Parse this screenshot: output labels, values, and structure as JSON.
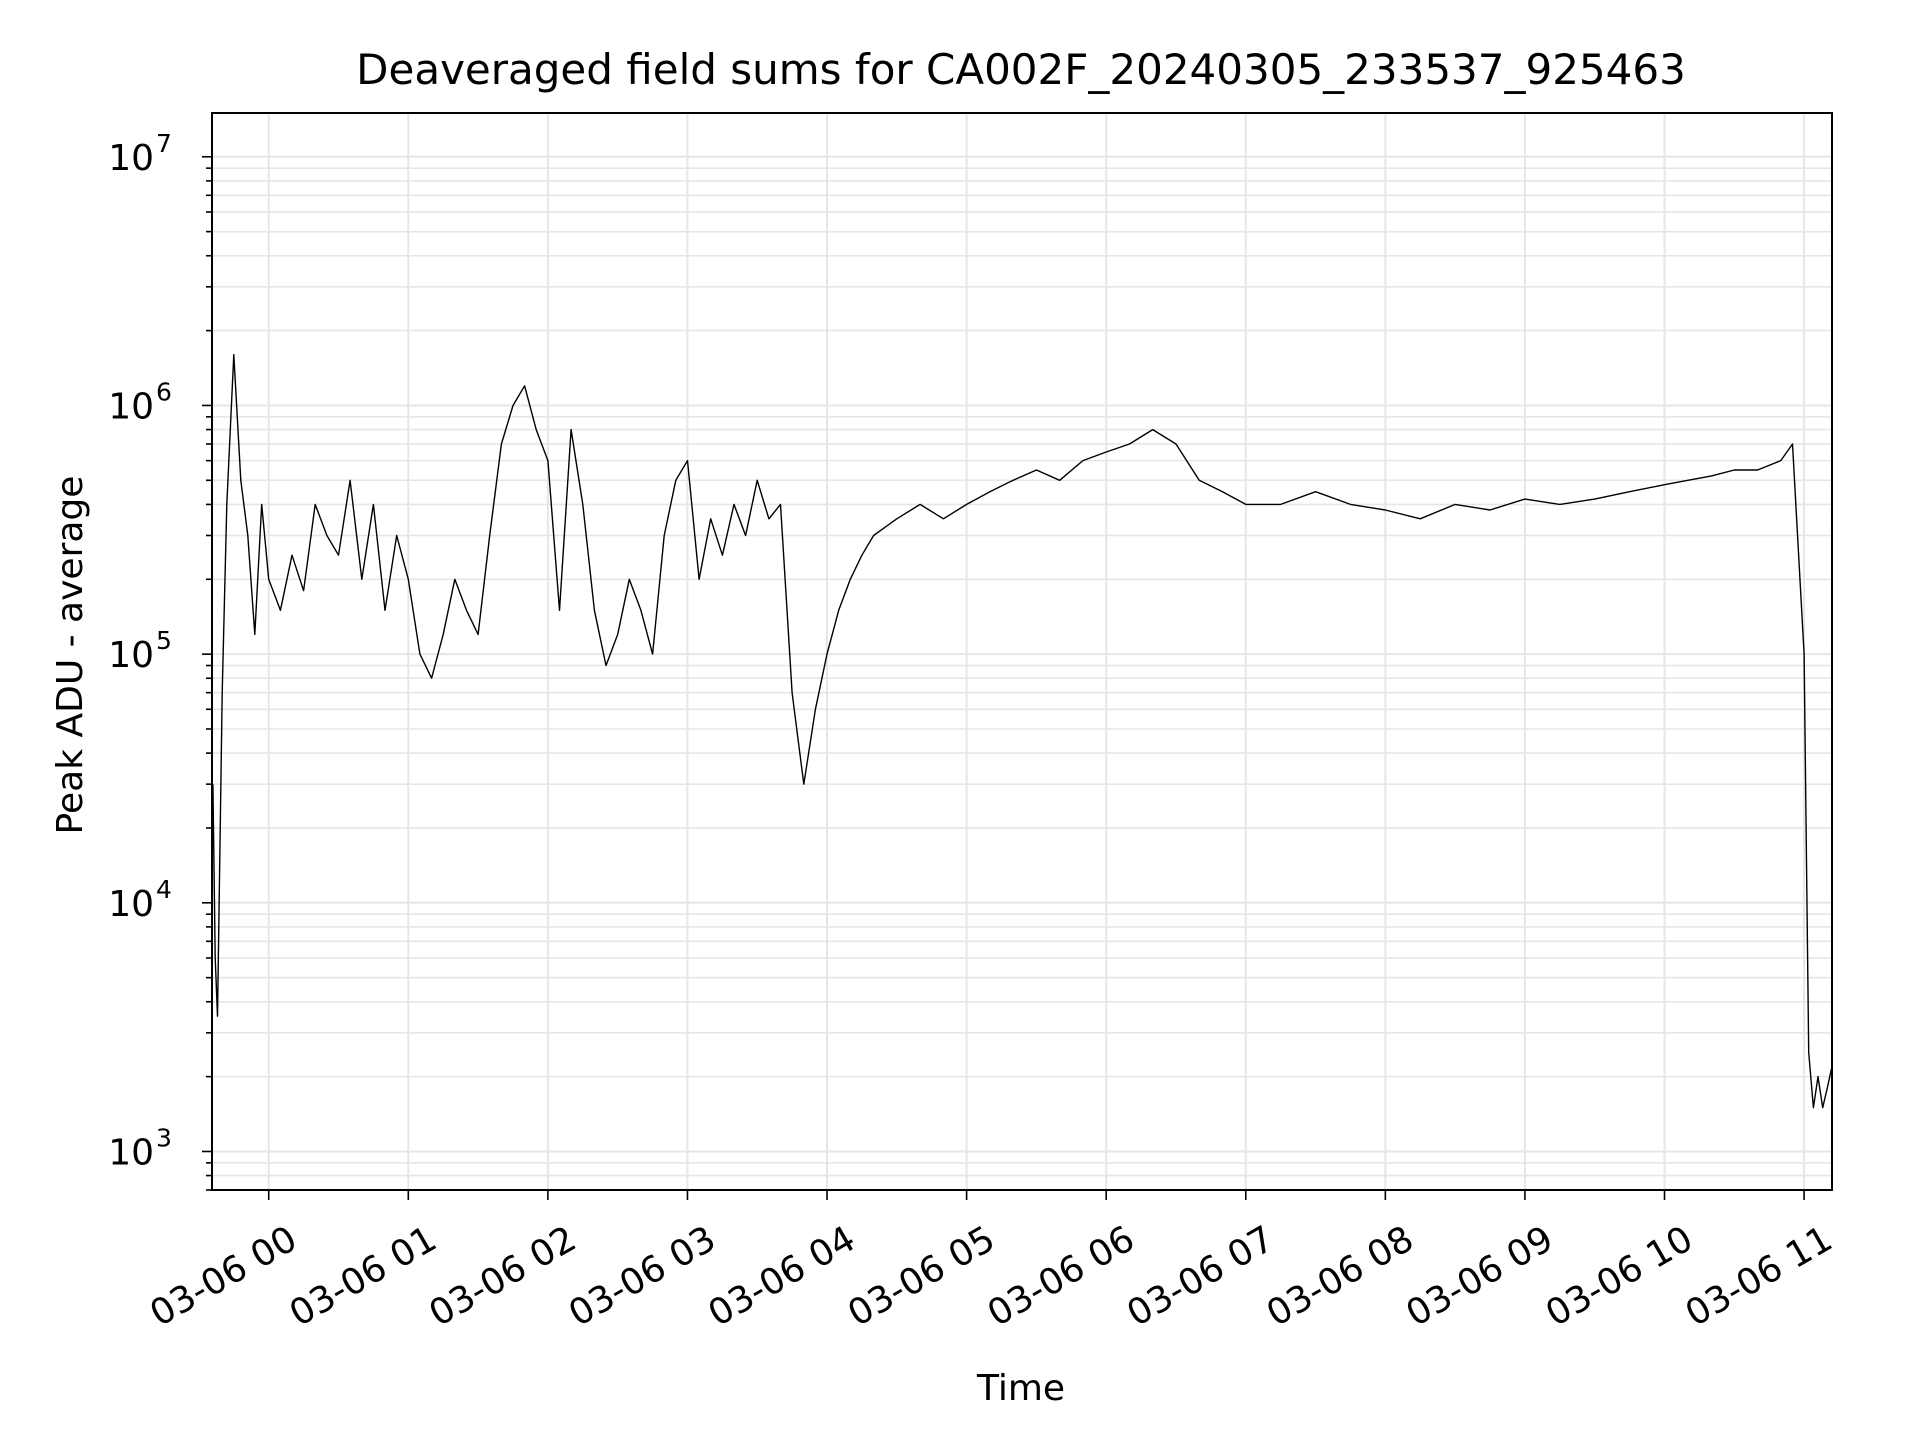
{
  "chart_data": {
    "type": "line",
    "title": "Deaveraged field sums for CA002F_20240305_233537_925463",
    "xlabel": "Time",
    "ylabel": "Peak ADU - average",
    "yscale": "log",
    "ylim": [
      700,
      15000000
    ],
    "xlim": [
      "2024-03-05 23:35:37",
      "2024-03-06 11:12:00"
    ],
    "grid": true,
    "line_color": "#000000",
    "grid_color": "#e6e6e6",
    "x_ticks": [
      {
        "t": "2024-03-06 00:00",
        "label": "03-06 00"
      },
      {
        "t": "2024-03-06 01:00",
        "label": "03-06 01"
      },
      {
        "t": "2024-03-06 02:00",
        "label": "03-06 02"
      },
      {
        "t": "2024-03-06 03:00",
        "label": "03-06 03"
      },
      {
        "t": "2024-03-06 04:00",
        "label": "03-06 04"
      },
      {
        "t": "2024-03-06 05:00",
        "label": "03-06 05"
      },
      {
        "t": "2024-03-06 06:00",
        "label": "03-06 06"
      },
      {
        "t": "2024-03-06 07:00",
        "label": "03-06 07"
      },
      {
        "t": "2024-03-06 08:00",
        "label": "03-06 08"
      },
      {
        "t": "2024-03-06 09:00",
        "label": "03-06 09"
      },
      {
        "t": "2024-03-06 10:00",
        "label": "03-06 10"
      },
      {
        "t": "2024-03-06 11:00",
        "label": "03-06 11"
      }
    ],
    "y_ticks": [
      {
        "value": 1000,
        "base": "10",
        "exp": "3"
      },
      {
        "value": 10000,
        "base": "10",
        "exp": "4"
      },
      {
        "value": 100000,
        "base": "10",
        "exp": "5"
      },
      {
        "value": 1000000,
        "base": "10",
        "exp": "6"
      },
      {
        "value": 10000000,
        "base": "10",
        "exp": "7"
      }
    ],
    "series": [
      {
        "x": [
          "2024-03-05 23:36",
          "2024-03-05 23:37",
          "2024-03-05 23:38",
          "2024-03-05 23:40",
          "2024-03-05 23:42",
          "2024-03-05 23:45",
          "2024-03-05 23:48",
          "2024-03-05 23:51",
          "2024-03-05 23:54",
          "2024-03-05 23:57",
          "2024-03-06 00:00",
          "2024-03-06 00:05",
          "2024-03-06 00:10",
          "2024-03-06 00:15",
          "2024-03-06 00:20",
          "2024-03-06 00:25",
          "2024-03-06 00:30",
          "2024-03-06 00:35",
          "2024-03-06 00:40",
          "2024-03-06 00:45",
          "2024-03-06 00:50",
          "2024-03-06 00:55",
          "2024-03-06 01:00",
          "2024-03-06 01:05",
          "2024-03-06 01:10",
          "2024-03-06 01:15",
          "2024-03-06 01:20",
          "2024-03-06 01:25",
          "2024-03-06 01:30",
          "2024-03-06 01:35",
          "2024-03-06 01:40",
          "2024-03-06 01:45",
          "2024-03-06 01:50",
          "2024-03-06 01:55",
          "2024-03-06 02:00",
          "2024-03-06 02:05",
          "2024-03-06 02:10",
          "2024-03-06 02:15",
          "2024-03-06 02:20",
          "2024-03-06 02:25",
          "2024-03-06 02:30",
          "2024-03-06 02:35",
          "2024-03-06 02:40",
          "2024-03-06 02:45",
          "2024-03-06 02:50",
          "2024-03-06 02:55",
          "2024-03-06 03:00",
          "2024-03-06 03:05",
          "2024-03-06 03:10",
          "2024-03-06 03:15",
          "2024-03-06 03:20",
          "2024-03-06 03:25",
          "2024-03-06 03:30",
          "2024-03-06 03:35",
          "2024-03-06 03:40",
          "2024-03-06 03:45",
          "2024-03-06 03:50",
          "2024-03-06 03:55",
          "2024-03-06 04:00",
          "2024-03-06 04:05",
          "2024-03-06 04:10",
          "2024-03-06 04:15",
          "2024-03-06 04:20",
          "2024-03-06 04:30",
          "2024-03-06 04:40",
          "2024-03-06 04:50",
          "2024-03-06 05:00",
          "2024-03-06 05:10",
          "2024-03-06 05:20",
          "2024-03-06 05:30",
          "2024-03-06 05:40",
          "2024-03-06 05:50",
          "2024-03-06 06:00",
          "2024-03-06 06:10",
          "2024-03-06 06:20",
          "2024-03-06 06:30",
          "2024-03-06 06:40",
          "2024-03-06 06:50",
          "2024-03-06 07:00",
          "2024-03-06 07:15",
          "2024-03-06 07:30",
          "2024-03-06 07:45",
          "2024-03-06 08:00",
          "2024-03-06 08:15",
          "2024-03-06 08:30",
          "2024-03-06 08:45",
          "2024-03-06 09:00",
          "2024-03-06 09:15",
          "2024-03-06 09:30",
          "2024-03-06 09:45",
          "2024-03-06 10:00",
          "2024-03-06 10:10",
          "2024-03-06 10:20",
          "2024-03-06 10:30",
          "2024-03-06 10:40",
          "2024-03-06 10:50",
          "2024-03-06 10:55",
          "2024-03-06 11:00",
          "2024-03-06 11:02",
          "2024-03-06 11:04",
          "2024-03-06 11:06",
          "2024-03-06 11:08",
          "2024-03-06 11:10",
          "2024-03-06 11:12"
        ],
        "y": [
          30000,
          6000,
          3500,
          70000,
          400000,
          1600000,
          500000,
          300000,
          120000,
          400000,
          200000,
          150000,
          250000,
          180000,
          400000,
          300000,
          250000,
          500000,
          200000,
          400000,
          150000,
          300000,
          200000,
          100000,
          80000,
          120000,
          200000,
          150000,
          120000,
          300000,
          700000,
          1000000,
          1200000,
          800000,
          600000,
          150000,
          800000,
          400000,
          150000,
          90000,
          120000,
          200000,
          150000,
          100000,
          300000,
          500000,
          600000,
          200000,
          350000,
          250000,
          400000,
          300000,
          500000,
          350000,
          400000,
          70000,
          30000,
          60000,
          100000,
          150000,
          200000,
          250000,
          300000,
          350000,
          400000,
          350000,
          400000,
          450000,
          500000,
          550000,
          500000,
          600000,
          650000,
          700000,
          800000,
          700000,
          500000,
          450000,
          400000,
          400000,
          450000,
          400000,
          380000,
          350000,
          400000,
          380000,
          420000,
          400000,
          420000,
          450000,
          480000,
          500000,
          520000,
          550000,
          550000,
          600000,
          700000,
          100000,
          2500,
          1500,
          2000,
          1500,
          1800,
          2200
        ]
      }
    ]
  }
}
